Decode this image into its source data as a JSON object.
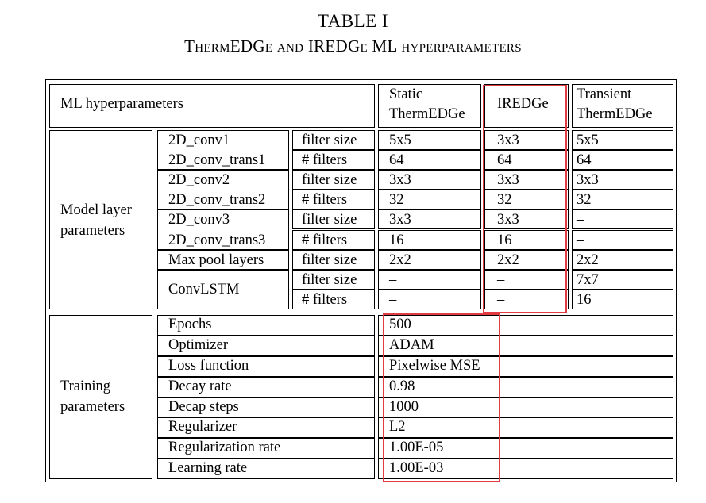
{
  "caption": {
    "line1": "TABLE I",
    "line2": "ThermEDGe and IREDGe ML hyperparameters"
  },
  "header": {
    "label": "ML hyperparameters",
    "col1": [
      "Static",
      "ThermEDGe"
    ],
    "col2": "IREDGe",
    "col3": [
      "Transient",
      "ThermEDGe"
    ]
  },
  "model_section": {
    "label": [
      "Model layer",
      "parameters"
    ],
    "rows": [
      {
        "layer": "2D_conv1",
        "param": "filter size",
        "v1": "5x5",
        "v2": "3x3",
        "v3": "5x5"
      },
      {
        "layer": "2D_conv_trans1",
        "param": "# filters",
        "v1": "64",
        "v2": "64",
        "v3": "64"
      },
      {
        "layer": "2D_conv2",
        "param": "filter size",
        "v1": "3x3",
        "v2": "3x3",
        "v3": "3x3"
      },
      {
        "layer": "2D_conv_trans2",
        "param": "# filters",
        "v1": "32",
        "v2": "32",
        "v3": "32"
      },
      {
        "layer": "2D_conv3",
        "param": "filter size",
        "v1": "3x3",
        "v2": "3x3",
        "v3": "–"
      },
      {
        "layer": "2D_conv_trans3",
        "param": "# filters",
        "v1": "16",
        "v2": "16",
        "v3": "–"
      },
      {
        "layer": "Max pool layers",
        "param": "filter size",
        "v1": "2x2",
        "v2": "2x2",
        "v3": "2x2"
      },
      {
        "layer": "ConvLSTM",
        "param": "filter size",
        "v1": "–",
        "v2": "–",
        "v3": "7x7"
      },
      {
        "layer": "",
        "param": "# filters",
        "v1": "–",
        "v2": "–",
        "v3": "16"
      }
    ]
  },
  "training_section": {
    "label": [
      "Training",
      "parameters"
    ],
    "rows": [
      {
        "name": "Epochs",
        "value": "500"
      },
      {
        "name": "Optimizer",
        "value": "ADAM"
      },
      {
        "name": "Loss function",
        "value": "Pixelwise MSE"
      },
      {
        "name": "Decay rate",
        "value": "0.98"
      },
      {
        "name": "Decap steps",
        "value": "1000"
      },
      {
        "name": "Regularizer",
        "value": "L2"
      },
      {
        "name": "Regularization rate",
        "value": "1.00E-05"
      },
      {
        "name": "Learning rate",
        "value": "1.00E-03"
      }
    ]
  },
  "highlight_color": "#e23b41"
}
